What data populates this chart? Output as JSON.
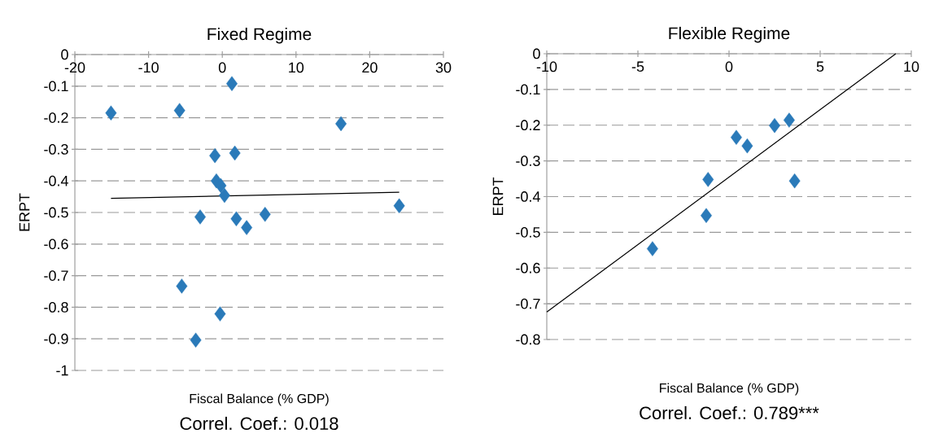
{
  "chart_data": [
    {
      "type": "scatter",
      "title": "Fixed Regime",
      "xlabel": "Fiscal Balance (% GDP)",
      "ylabel": "ERPT",
      "annotations": [
        "Correl. Coef.:  0.018"
      ],
      "series": [
        {
          "type": "scatter",
          "marker": "diamond",
          "color": "#2a7ab9",
          "x": [
            -15.1,
            -5.8,
            1.3,
            16.1,
            -1.0,
            1.7,
            -0.8,
            -0.2,
            0.3,
            -3.0,
            1.9,
            3.3,
            5.8,
            24.0,
            -5.5,
            -0.3,
            -3.6
          ],
          "values": [
            -0.185,
            -0.177,
            -0.092,
            -0.219,
            -0.32,
            -0.312,
            -0.4,
            -0.415,
            -0.446,
            -0.514,
            -0.52,
            -0.548,
            -0.506,
            -0.479,
            -0.733,
            -0.821,
            -0.904
          ]
        },
        {
          "type": "line",
          "color": "#000000",
          "x": [
            -15.1,
            24.0
          ],
          "values": [
            -0.455,
            -0.436
          ]
        }
      ],
      "xlim": [
        -20,
        30
      ],
      "ylim": [
        -1,
        0
      ],
      "xticks": [
        -20,
        -10,
        0,
        10,
        20,
        30
      ],
      "yticks": [
        -1,
        -0.9,
        -0.8,
        -0.7,
        -0.6,
        -0.5,
        -0.4,
        -0.3,
        -0.2,
        -0.1,
        0
      ],
      "grid": "y"
    },
    {
      "type": "scatter",
      "title": "Flexible Regime",
      "xlabel": "Fiscal Balance (% GDP)",
      "ylabel": "ERPT",
      "annotations": [
        "Correl. Coef.: 0.789***"
      ],
      "series": [
        {
          "type": "scatter",
          "marker": "diamond",
          "color": "#2a7ab9",
          "x": [
            -4.2,
            -1.15,
            -1.25,
            0.4,
            1.0,
            2.5,
            3.3,
            3.6
          ],
          "values": [
            -0.546,
            -0.352,
            -0.453,
            -0.234,
            -0.258,
            -0.201,
            -0.186,
            -0.356
          ]
        },
        {
          "type": "line",
          "color": "#000000",
          "x": [
            -10,
            9.15
          ],
          "values": [
            -0.723,
            0
          ]
        }
      ],
      "xlim": [
        -10,
        10
      ],
      "ylim": [
        -0.8,
        0
      ],
      "xticks": [
        -10,
        -5,
        0,
        5,
        10
      ],
      "yticks": [
        -0.8,
        -0.7,
        -0.6,
        -0.5,
        -0.4,
        -0.3,
        -0.2,
        -0.1,
        0
      ],
      "grid": "y"
    }
  ]
}
